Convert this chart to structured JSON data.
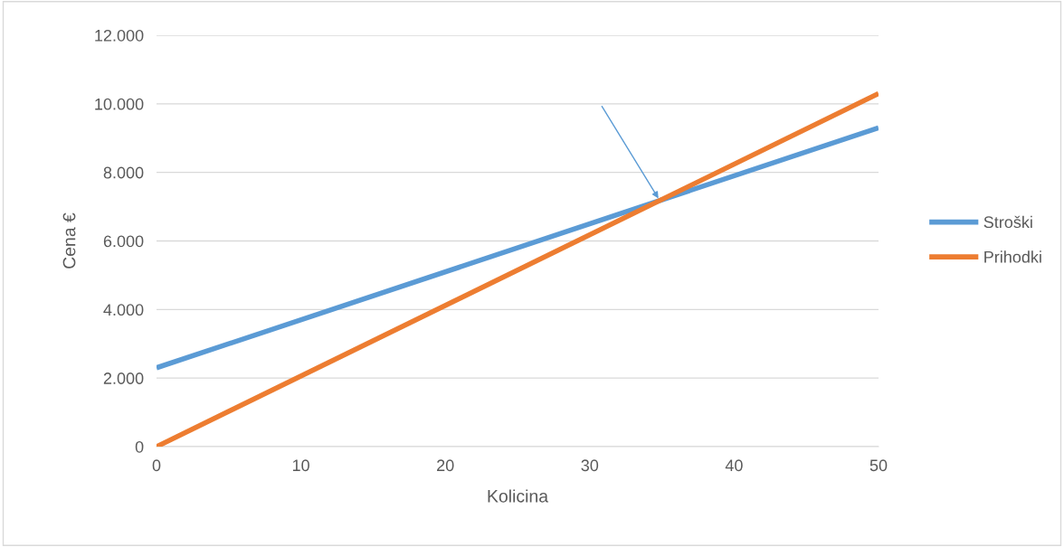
{
  "chart_data": {
    "type": "line",
    "xlabel": "Kolicina",
    "ylabel": "Cena €",
    "x": [
      0,
      50
    ],
    "series": [
      {
        "name": "Stroški",
        "color": "#5b9bd5",
        "values": [
          2300,
          9300
        ]
      },
      {
        "name": "Prihodki",
        "color": "#ed7d31",
        "values": [
          0,
          10300
        ]
      }
    ],
    "xlim": [
      0,
      50
    ],
    "xticks": [
      0,
      10,
      20,
      30,
      40,
      50
    ],
    "ylim": [
      0,
      12000
    ],
    "yticks": [
      {
        "value": 0,
        "label": "0"
      },
      {
        "value": 2000,
        "label": "2.000"
      },
      {
        "value": 4000,
        "label": "4.000"
      },
      {
        "value": 6000,
        "label": "6.000"
      },
      {
        "value": 8000,
        "label": "8.000"
      },
      {
        "value": 10000,
        "label": "10.000"
      },
      {
        "value": 12000,
        "label": "12.000"
      }
    ],
    "grid": "y",
    "legend": "right",
    "marker": "none",
    "line_style": "solid"
  }
}
